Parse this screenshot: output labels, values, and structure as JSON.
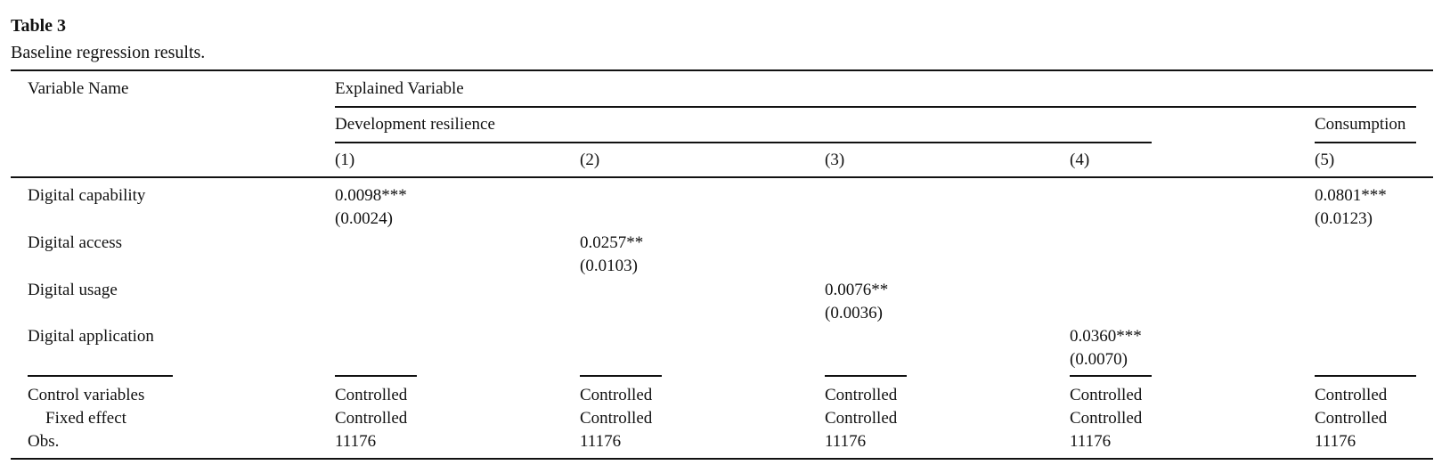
{
  "title": "Table 3",
  "caption": "Baseline regression results.",
  "header": {
    "variable": "Variable Name",
    "explained": "Explained Variable",
    "group1": "Development resilience",
    "group2": "Consumption",
    "columns": [
      "(1)",
      "(2)",
      "(3)",
      "(4)",
      "(5)"
    ]
  },
  "rows": [
    {
      "name": "Digital capability",
      "cells": [
        {
          "coef": "0.0098***",
          "se": "(0.0024)"
        },
        null,
        null,
        null,
        {
          "coef": "0.0801***",
          "se": "(0.0123)"
        }
      ]
    },
    {
      "name": "Digital access",
      "cells": [
        null,
        {
          "coef": "0.0257**",
          "se": "(0.0103)"
        },
        null,
        null,
        null
      ]
    },
    {
      "name": "Digital usage",
      "cells": [
        null,
        null,
        {
          "coef": "0.0076**",
          "se": "(0.0036)"
        },
        null,
        null
      ]
    },
    {
      "name": "Digital application",
      "cells": [
        null,
        null,
        null,
        {
          "coef": "0.0360***",
          "se": "(0.0070)"
        },
        null
      ]
    }
  ],
  "footer": [
    {
      "name": "Control variables",
      "cells": [
        "Controlled",
        "Controlled",
        "Controlled",
        "Controlled",
        "Controlled"
      ]
    },
    {
      "name": "Fixed effect",
      "cells": [
        "Controlled",
        "Controlled",
        "Controlled",
        "Controlled",
        "Controlled"
      ]
    },
    {
      "name": "Obs.",
      "cells": [
        "11176",
        "11176",
        "11176",
        "11176",
        "11176"
      ]
    }
  ]
}
